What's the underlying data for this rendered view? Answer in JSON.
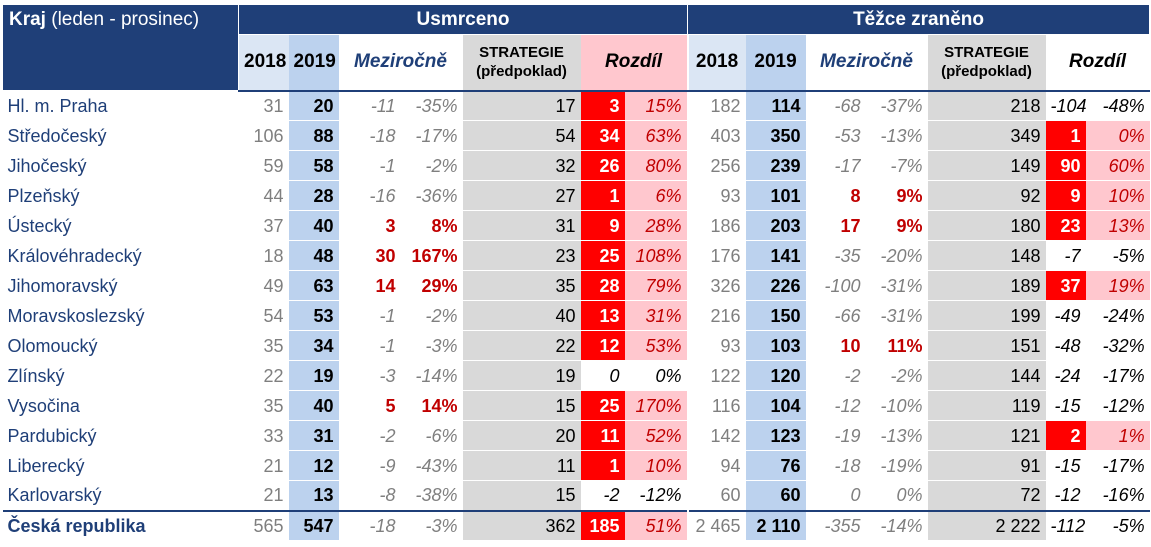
{
  "header": {
    "group_killed": "Usmrceno",
    "group_injured": "Těžce zraněno",
    "kraj_bold": "Kraj",
    "kraj_note": "(leden - prosinec)",
    "col_2018": "2018",
    "col_2019": "2019",
    "col_yoy": "Meziročně",
    "col_strategy_1": "STRATEGIE",
    "col_strategy_2": "(předpoklad)",
    "col_diff": "Rozdíl"
  },
  "rows": [
    {
      "region": "Hl. m. Praha",
      "k": {
        "y2018": "31",
        "y2019": "20",
        "d_abs": "-11",
        "d_pct": "-35%",
        "strategy": "17",
        "diff": "3",
        "diff_pct": "15%",
        "up": false,
        "hi": true
      },
      "i": {
        "y2018": "182",
        "y2019": "114",
        "d_abs": "-68",
        "d_pct": "-37%",
        "strategy": "218",
        "diff": "-104",
        "diff_pct": "-48%",
        "up": false,
        "hi": false
      }
    },
    {
      "region": "Středočeský",
      "k": {
        "y2018": "106",
        "y2019": "88",
        "d_abs": "-18",
        "d_pct": "-17%",
        "strategy": "54",
        "diff": "34",
        "diff_pct": "63%",
        "up": false,
        "hi": true
      },
      "i": {
        "y2018": "403",
        "y2019": "350",
        "d_abs": "-53",
        "d_pct": "-13%",
        "strategy": "349",
        "diff": "1",
        "diff_pct": "0%",
        "up": false,
        "hi": true
      }
    },
    {
      "region": "Jihočeský",
      "k": {
        "y2018": "59",
        "y2019": "58",
        "d_abs": "-1",
        "d_pct": "-2%",
        "strategy": "32",
        "diff": "26",
        "diff_pct": "80%",
        "up": false,
        "hi": true
      },
      "i": {
        "y2018": "256",
        "y2019": "239",
        "d_abs": "-17",
        "d_pct": "-7%",
        "strategy": "149",
        "diff": "90",
        "diff_pct": "60%",
        "up": false,
        "hi": true
      }
    },
    {
      "region": "Plzeňský",
      "k": {
        "y2018": "44",
        "y2019": "28",
        "d_abs": "-16",
        "d_pct": "-36%",
        "strategy": "27",
        "diff": "1",
        "diff_pct": "6%",
        "up": false,
        "hi": true
      },
      "i": {
        "y2018": "93",
        "y2019": "101",
        "d_abs": "8",
        "d_pct": "9%",
        "strategy": "92",
        "diff": "9",
        "diff_pct": "10%",
        "up": true,
        "hi": true
      }
    },
    {
      "region": "Ústecký",
      "k": {
        "y2018": "37",
        "y2019": "40",
        "d_abs": "3",
        "d_pct": "8%",
        "strategy": "31",
        "diff": "9",
        "diff_pct": "28%",
        "up": true,
        "hi": true
      },
      "i": {
        "y2018": "186",
        "y2019": "203",
        "d_abs": "17",
        "d_pct": "9%",
        "strategy": "180",
        "diff": "23",
        "diff_pct": "13%",
        "up": true,
        "hi": true
      }
    },
    {
      "region": "Královéhradecký",
      "k": {
        "y2018": "18",
        "y2019": "48",
        "d_abs": "30",
        "d_pct": "167%",
        "strategy": "23",
        "diff": "25",
        "diff_pct": "108%",
        "up": true,
        "hi": true
      },
      "i": {
        "y2018": "176",
        "y2019": "141",
        "d_abs": "-35",
        "d_pct": "-20%",
        "strategy": "148",
        "diff": "-7",
        "diff_pct": "-5%",
        "up": false,
        "hi": false
      }
    },
    {
      "region": "Jihomoravský",
      "k": {
        "y2018": "49",
        "y2019": "63",
        "d_abs": "14",
        "d_pct": "29%",
        "strategy": "35",
        "diff": "28",
        "diff_pct": "79%",
        "up": true,
        "hi": true
      },
      "i": {
        "y2018": "326",
        "y2019": "226",
        "d_abs": "-100",
        "d_pct": "-31%",
        "strategy": "189",
        "diff": "37",
        "diff_pct": "19%",
        "up": false,
        "hi": true
      }
    },
    {
      "region": "Moravskoslezský",
      "k": {
        "y2018": "54",
        "y2019": "53",
        "d_abs": "-1",
        "d_pct": "-2%",
        "strategy": "40",
        "diff": "13",
        "diff_pct": "31%",
        "up": false,
        "hi": true
      },
      "i": {
        "y2018": "216",
        "y2019": "150",
        "d_abs": "-66",
        "d_pct": "-31%",
        "strategy": "199",
        "diff": "-49",
        "diff_pct": "-24%",
        "up": false,
        "hi": false
      }
    },
    {
      "region": "Olomoucký",
      "k": {
        "y2018": "35",
        "y2019": "34",
        "d_abs": "-1",
        "d_pct": "-3%",
        "strategy": "22",
        "diff": "12",
        "diff_pct": "53%",
        "up": false,
        "hi": true
      },
      "i": {
        "y2018": "93",
        "y2019": "103",
        "d_abs": "10",
        "d_pct": "11%",
        "strategy": "151",
        "diff": "-48",
        "diff_pct": "-32%",
        "up": true,
        "hi": false
      }
    },
    {
      "region": "Zlínský",
      "k": {
        "y2018": "22",
        "y2019": "19",
        "d_abs": "-3",
        "d_pct": "-14%",
        "strategy": "19",
        "diff": "0",
        "diff_pct": "0%",
        "up": false,
        "hi": false
      },
      "i": {
        "y2018": "122",
        "y2019": "120",
        "d_abs": "-2",
        "d_pct": "-2%",
        "strategy": "144",
        "diff": "-24",
        "diff_pct": "-17%",
        "up": false,
        "hi": false
      }
    },
    {
      "region": "Vysočina",
      "k": {
        "y2018": "35",
        "y2019": "40",
        "d_abs": "5",
        "d_pct": "14%",
        "strategy": "15",
        "diff": "25",
        "diff_pct": "170%",
        "up": true,
        "hi": true
      },
      "i": {
        "y2018": "116",
        "y2019": "104",
        "d_abs": "-12",
        "d_pct": "-10%",
        "strategy": "119",
        "diff": "-15",
        "diff_pct": "-12%",
        "up": false,
        "hi": false
      }
    },
    {
      "region": "Pardubický",
      "k": {
        "y2018": "33",
        "y2019": "31",
        "d_abs": "-2",
        "d_pct": "-6%",
        "strategy": "20",
        "diff": "11",
        "diff_pct": "52%",
        "up": false,
        "hi": true
      },
      "i": {
        "y2018": "142",
        "y2019": "123",
        "d_abs": "-19",
        "d_pct": "-13%",
        "strategy": "121",
        "diff": "2",
        "diff_pct": "1%",
        "up": false,
        "hi": true
      }
    },
    {
      "region": "Liberecký",
      "k": {
        "y2018": "21",
        "y2019": "12",
        "d_abs": "-9",
        "d_pct": "-43%",
        "strategy": "11",
        "diff": "1",
        "diff_pct": "10%",
        "up": false,
        "hi": true
      },
      "i": {
        "y2018": "94",
        "y2019": "76",
        "d_abs": "-18",
        "d_pct": "-19%",
        "strategy": "91",
        "diff": "-15",
        "diff_pct": "-17%",
        "up": false,
        "hi": false
      }
    },
    {
      "region": "Karlovarský",
      "k": {
        "y2018": "21",
        "y2019": "13",
        "d_abs": "-8",
        "d_pct": "-38%",
        "strategy": "15",
        "diff": "-2",
        "diff_pct": "-12%",
        "up": false,
        "hi": false
      },
      "i": {
        "y2018": "60",
        "y2019": "60",
        "d_abs": "0",
        "d_pct": "0%",
        "strategy": "72",
        "diff": "-12",
        "diff_pct": "-16%",
        "up": false,
        "hi": false
      }
    }
  ],
  "total": {
    "region": "Česká republika",
    "k": {
      "y2018": "565",
      "y2019": "547",
      "d_abs": "-18",
      "d_pct": "-3%",
      "strategy": "362",
      "diff": "185",
      "diff_pct": "51%",
      "up": false,
      "hi": true
    },
    "i": {
      "y2018": "2 465",
      "y2019": "2 110",
      "d_abs": "-355",
      "d_pct": "-14%",
      "strategy": "2 222",
      "diff": "-112",
      "diff_pct": "-5%",
      "up": false,
      "hi": false
    }
  },
  "colors": {
    "header_blue": "#1f3f78",
    "year_2019_fill": "#bcd2ee",
    "strategy_fill": "#d9d9d9",
    "diff_highlight": "#ff0000",
    "diff_pct_highlight": "#ffc7ce",
    "increase_text": "#c00000"
  }
}
